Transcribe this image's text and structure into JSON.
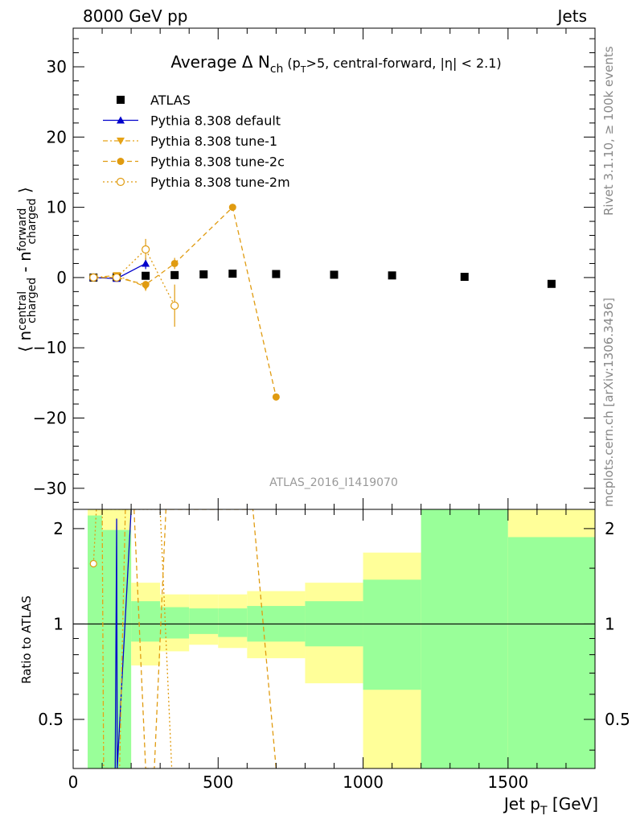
{
  "header": {
    "collision": "8000 GeV pp",
    "process": "Jets"
  },
  "sidebar": {
    "rivet_text": "Rivet 3.1.10, ≥ 100k events",
    "mcplots_text": "mcplots.cern.ch [arXiv:1306.3436]"
  },
  "chart_data": [
    {
      "type": "scatter",
      "title": "Average Δ N",
      "title_sub": "ch",
      "title_cond": "(p",
      "title_cond_sub": "T",
      "title_cond_rest": ">5, central-forward, |η| < 2.1)",
      "ylabel_parts": [
        "⟨ n",
        "central",
        "charged",
        " - n",
        "forward",
        "charged",
        " ⟩"
      ],
      "watermark": "ATLAS_2016_I1419070",
      "xlim": [
        0,
        1800
      ],
      "ylim": [
        -33,
        35.5
      ],
      "yticks": [
        -30,
        -20,
        -10,
        0,
        10,
        20,
        30
      ],
      "grid": false,
      "legend_placement": "top-left",
      "series": [
        {
          "name": "ATLAS",
          "color": "#000000",
          "marker": "square",
          "x": [
            70,
            150,
            250,
            350,
            450,
            550,
            700,
            900,
            1100,
            1350,
            1650
          ],
          "y": [
            0.0,
            0.05,
            0.25,
            0.35,
            0.45,
            0.55,
            0.5,
            0.4,
            0.3,
            0.1,
            -0.9
          ]
        },
        {
          "name": "Pythia 8.308 default",
          "color": "#0000cc",
          "marker": "triangle-up",
          "line": "solid",
          "x": [
            70,
            150,
            250
          ],
          "y": [
            0.0,
            -0.15,
            2.0
          ],
          "yerr": [
            0.2,
            0.3,
            0.8
          ]
        },
        {
          "name": "Pythia 8.308 tune-1",
          "color": "#e6a317",
          "marker": "triangle-down",
          "line": "dashdot",
          "x": [
            70,
            150,
            250
          ],
          "y": [
            0.0,
            0.3,
            -1.3
          ],
          "yerr": [
            0.2,
            0.3,
            0.6
          ]
        },
        {
          "name": "Pythia 8.308 tune-2c",
          "color": "#e09b10",
          "marker": "circle",
          "line": "dashed",
          "x": [
            70,
            150,
            250,
            350,
            550,
            700
          ],
          "y": [
            0.0,
            0.0,
            -1.0,
            2.0,
            10.0,
            -17.0
          ],
          "yerr": [
            0.2,
            0.3,
            0.5,
            0.8,
            0.3,
            0.3
          ]
        },
        {
          "name": "Pythia 8.308 tune-2m",
          "color": "#e09b10",
          "marker": "circle-open",
          "line": "dotted",
          "x": [
            70,
            150,
            250,
            350
          ],
          "y": [
            0.0,
            0.0,
            4.0,
            -4.0
          ],
          "yerr": [
            0.2,
            0.3,
            1.5,
            3.0
          ]
        }
      ]
    },
    {
      "type": "ratio",
      "ylabel": "Ratio to ATLAS",
      "xlabel": "Jet p",
      "xlabel_sub": "T",
      "xlabel_unit": " [GeV]",
      "xlim": [
        0,
        1800
      ],
      "ylim": [
        0.35,
        2.3
      ],
      "yticks": [
        0.5,
        1,
        2
      ],
      "xticks": [
        0,
        500,
        1000,
        1500
      ],
      "bins": [
        {
          "x0": 50,
          "x1": 100,
          "g_lo": 0.35,
          "g_hi": 2.2,
          "y_lo": 0.35,
          "y_hi": 2.3
        },
        {
          "x0": 100,
          "x1": 200,
          "g_lo": 0.35,
          "g_hi": 1.98,
          "y_lo": 0.35,
          "y_hi": 2.3
        },
        {
          "x0": 200,
          "x1": 300,
          "g_lo": 0.88,
          "g_hi": 1.18,
          "y_lo": 0.74,
          "y_hi": 1.35
        },
        {
          "x0": 300,
          "x1": 400,
          "g_lo": 0.9,
          "g_hi": 1.13,
          "y_lo": 0.82,
          "y_hi": 1.24
        },
        {
          "x0": 400,
          "x1": 500,
          "g_lo": 0.93,
          "g_hi": 1.12,
          "y_lo": 0.86,
          "y_hi": 1.24
        },
        {
          "x0": 500,
          "x1": 600,
          "g_lo": 0.91,
          "g_hi": 1.12,
          "y_lo": 0.84,
          "y_hi": 1.24
        },
        {
          "x0": 600,
          "x1": 800,
          "g_lo": 0.88,
          "g_hi": 1.14,
          "y_lo": 0.78,
          "y_hi": 1.27
        },
        {
          "x0": 800,
          "x1": 1000,
          "g_lo": 0.85,
          "g_hi": 1.18,
          "y_lo": 0.65,
          "y_hi": 1.35
        },
        {
          "x0": 1000,
          "x1": 1200,
          "g_lo": 0.62,
          "g_hi": 1.38,
          "y_lo": 0.35,
          "y_hi": 1.68
        },
        {
          "x0": 1200,
          "x1": 1500,
          "g_lo": 0.35,
          "g_hi": 2.3,
          "y_lo": 0.35,
          "y_hi": 2.3
        },
        {
          "x0": 1500,
          "x1": 1800,
          "g_lo": 0.35,
          "g_hi": 1.88,
          "y_lo": 0.35,
          "y_hi": 2.3
        }
      ],
      "ratio_lines": [
        {
          "name": "Pythia 8.308 default",
          "color": "#0000cc",
          "x": [
            145,
            150,
            152,
            200
          ],
          "y": [
            0.35,
            2.15,
            0.35,
            2.3
          ]
        },
        {
          "name": "Pythia 8.308 tune-1",
          "color": "#e6a317",
          "x": [
            100,
            105,
            160,
            180
          ],
          "y": [
            2.3,
            0.35,
            0.35,
            2.3
          ]
        },
        {
          "name": "Pythia 8.308 tune-2c",
          "color": "#e09b10",
          "x": [
            210,
            250,
            280,
            320,
            620,
            700
          ],
          "y": [
            2.3,
            0.35,
            0.35,
            2.3,
            2.3,
            0.35
          ]
        },
        {
          "name": "Pythia 8.308 tune-2m",
          "color": "#e09b10",
          "x": [
            70,
            80,
            300,
            340
          ],
          "y": [
            1.55,
            2.3,
            2.3,
            0.35
          ]
        }
      ]
    }
  ]
}
